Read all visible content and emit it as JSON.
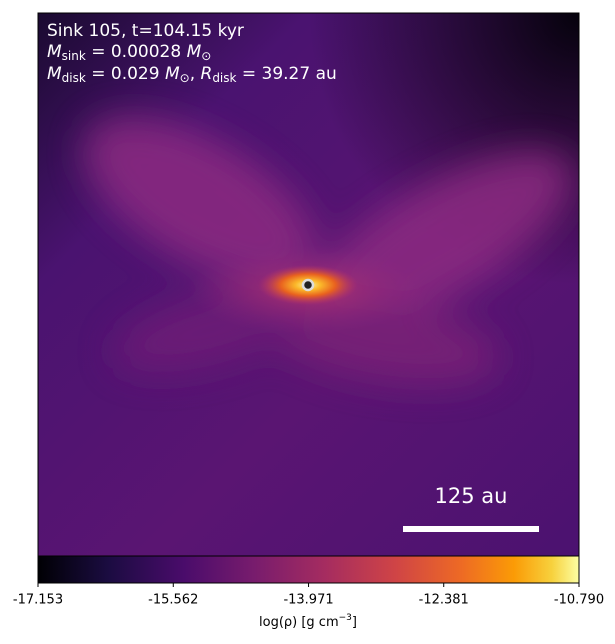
{
  "chart_data": {
    "type": "image",
    "annotations": [
      [
        "Sink 105, t=104.15 kyr"
      ],
      [
        "M",
        "sink",
        " = 0.00028 ",
        "M",
        "⊙"
      ],
      [
        "M",
        "disk",
        " = 0.029 ",
        "M",
        "⊙",
        ", ",
        "R",
        "disk",
        " = 39.27 au"
      ]
    ],
    "scale_bar": {
      "label": "125 au"
    },
    "colorbar": {
      "label": [
        "log(ρ) [g cm",
        "−3",
        "]"
      ],
      "clim": [
        -17.153,
        -10.79
      ],
      "ticks": [
        -17.153,
        -15.562,
        -13.971,
        -12.381,
        {
          "value": -10.79,
          "label": "-10.790"
        }
      ],
      "colormap": "inferno"
    }
  }
}
